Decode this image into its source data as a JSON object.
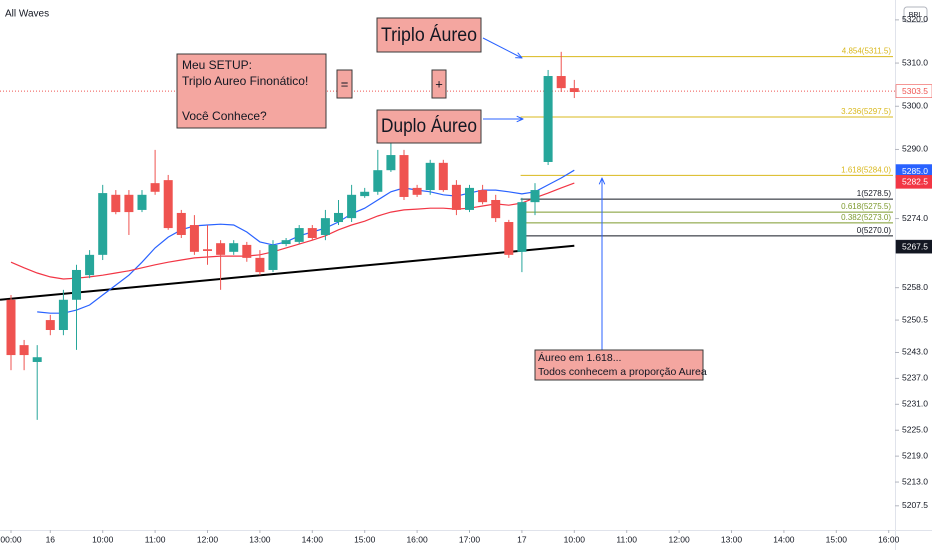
{
  "chart_data": {
    "type": "candlestick",
    "title": "All Waves",
    "currency": "BRL",
    "xlim": [
      -0.84,
      67.48
    ],
    "xticks": [
      {
        "value": 0,
        "label": "00:00"
      },
      {
        "value": 3,
        "label": "16"
      },
      {
        "value": 7,
        "label": "10:00"
      },
      {
        "value": 11,
        "label": "11:00"
      },
      {
        "value": 15,
        "label": "12:00"
      },
      {
        "value": 19,
        "label": "13:00"
      },
      {
        "value": 23,
        "label": "14:00"
      },
      {
        "value": 27,
        "label": "15:00"
      },
      {
        "value": 31,
        "label": "16:00"
      },
      {
        "value": 35,
        "label": "17:00"
      },
      {
        "value": 39,
        "label": "17"
      },
      {
        "value": 43,
        "label": "10:00"
      },
      {
        "value": 47,
        "label": "11:00"
      },
      {
        "value": 51,
        "label": "12:00"
      },
      {
        "value": 55,
        "label": "13:00"
      },
      {
        "value": 59,
        "label": "14:00"
      },
      {
        "value": 63,
        "label": "15:00"
      },
      {
        "value": 67,
        "label": "16:00"
      }
    ],
    "ylim": [
      5201.9,
      5324.6
    ],
    "yticks": [
      {
        "value": 5320,
        "label": "5320.0"
      },
      {
        "value": 5310,
        "label": "5310.0"
      },
      {
        "value": 5300,
        "label": "5300.0"
      },
      {
        "value": 5290,
        "label": "5290.0"
      },
      {
        "value": 5274,
        "label": "5274.0"
      },
      {
        "value": 5258,
        "label": "5258.0"
      },
      5250.5,
      {
        "value": 5243,
        "label": "5243.0"
      },
      {
        "value": 5237,
        "label": "5237.0"
      },
      {
        "value": 5231,
        "label": "5231.0"
      },
      {
        "value": 5225,
        "label": "5225.0"
      },
      {
        "value": 5219,
        "label": "5219.0"
      },
      {
        "value": 5213,
        "label": "5213.0"
      },
      5207.5
    ],
    "grid": false,
    "up_color": "#26a69a",
    "down_color": "#ef5350",
    "candles": [
      [
        5255.2,
        5256.3,
        5238.9,
        5242.4
      ],
      [
        5244.7,
        5245.9,
        5238.9,
        5242.4
      ],
      [
        5240.8,
        5244.7,
        5227.4,
        5241.9
      ],
      [
        5250.5,
        5251.7,
        5247.0,
        5248.2
      ],
      [
        5248.2,
        5257.5,
        5247.0,
        5255.2
      ],
      [
        5255.2,
        5263.3,
        5243.6,
        5262.1
      ],
      [
        5260.9,
        5266.7,
        5260.2,
        5265.6
      ],
      [
        5265.6,
        5281.8,
        5264.4,
        5279.9
      ],
      [
        5279.5,
        5280.6,
        5275.0,
        5275.5
      ],
      [
        5279.5,
        5280.6,
        5270.2,
        5275.5
      ],
      [
        5276.0,
        5280.6,
        5275.5,
        5279.5
      ],
      [
        5282.2,
        5289.9,
        5279.5,
        5280.2
      ],
      [
        5282.9,
        5284.1,
        5271.4,
        5271.8
      ],
      [
        5275.3,
        5276.0,
        5269.5,
        5270.2
      ],
      [
        5272.5,
        5274.8,
        5265.6,
        5266.3
      ],
      [
        5266.9,
        5272.5,
        5263.3,
        5266.5
      ],
      [
        5268.3,
        5269.0,
        5257.5,
        5265.6
      ],
      [
        5266.3,
        5269.0,
        5265.6,
        5268.3
      ],
      [
        5267.9,
        5268.6,
        5264.0,
        5264.9
      ],
      [
        5264.9,
        5266.7,
        5260.9,
        5261.6
      ],
      [
        5262.1,
        5269.0,
        5261.6,
        5267.9
      ],
      [
        5268.1,
        5269.5,
        5267.6,
        5269.0
      ],
      [
        5268.6,
        5272.5,
        5268.1,
        5271.8
      ],
      [
        5271.8,
        5272.5,
        5269.0,
        5269.5
      ],
      [
        5270.2,
        5276.0,
        5269.0,
        5274.1
      ],
      [
        5273.2,
        5278.3,
        5272.5,
        5275.3
      ],
      [
        5274.1,
        5281.8,
        5273.2,
        5279.5
      ],
      [
        5279.2,
        5281.1,
        5278.8,
        5280.2
      ],
      [
        5280.2,
        5289.9,
        5279.5,
        5285.2
      ],
      [
        5285.2,
        5292.2,
        5284.8,
        5288.7
      ],
      [
        5288.7,
        5289.9,
        5278.3,
        5279.0
      ],
      [
        5281.1,
        5281.8,
        5279.0,
        5279.5
      ],
      [
        5280.6,
        5287.6,
        5279.5,
        5286.9
      ],
      [
        5286.9,
        5287.6,
        5280.2,
        5280.6
      ],
      [
        5281.8,
        5282.9,
        5274.8,
        5276.0
      ],
      [
        5276.0,
        5281.8,
        5275.5,
        5281.1
      ],
      [
        5280.6,
        5281.8,
        5277.3,
        5277.8
      ],
      [
        5278.3,
        5279.5,
        5273.2,
        5274.1
      ],
      [
        5273.2,
        5273.7,
        5264.9,
        5265.6
      ],
      [
        5266.3,
        5278.8,
        5261.6,
        5277.8
      ],
      [
        5277.8,
        5282.2,
        5274.8,
        5280.6
      ],
      [
        5287.1,
        5308.4,
        5286.4,
        5307.0
      ],
      [
        5307.0,
        5312.6,
        5303.3,
        5304.2
      ],
      [
        5304.2,
        5306.1,
        5301.9,
        5303.3
      ]
    ],
    "lines": [
      {
        "color": "#2962ff",
        "values": [
          null,
          null,
          5252.4,
          5252.1,
          5252.1,
          5252.8,
          5254.0,
          5256.3,
          5258.6,
          5260.9,
          5263.9,
          5267.2,
          5269.7,
          5271.4,
          5272.3,
          5272.5,
          5272.7,
          5272.5,
          5270.9,
          5268.6,
          5267.9,
          5268.6,
          5270.0,
          5270.9,
          5271.8,
          5273.2,
          5275.1,
          5276.4,
          5278.3,
          5280.2,
          5281.1,
          5280.6,
          5280.2,
          5279.5,
          5279.2,
          5279.9,
          5280.6,
          5280.6,
          5280.2,
          5279.7,
          5280.2,
          5281.8,
          5283.4,
          5285.2
        ]
      },
      {
        "color": "#f23645",
        "values": [
          5263.9,
          5262.6,
          5261.4,
          5260.5,
          5260.0,
          5260.2,
          5260.5,
          5260.9,
          5261.4,
          5261.9,
          5262.6,
          5263.3,
          5263.9,
          5264.4,
          5264.9,
          5265.1,
          5265.3,
          5265.3,
          5265.3,
          5265.6,
          5266.3,
          5267.2,
          5268.1,
          5269.0,
          5270.0,
          5271.4,
          5272.5,
          5273.4,
          5274.6,
          5275.5,
          5276.0,
          5276.2,
          5276.4,
          5276.4,
          5276.2,
          5276.4,
          5276.9,
          5277.4,
          5277.1,
          5277.6,
          5278.8,
          5279.9,
          5281.1,
          5282.2
        ]
      }
    ],
    "trendline": {
      "color": "#000000",
      "x": [
        -0.84,
        43
      ],
      "values": [
        5255.2,
        5267.7
      ]
    },
    "fib_levels": [
      {
        "label": "4.854(5311.5)",
        "value": 5311.5,
        "color": "#d9b81c"
      },
      {
        "label": "3.236(5297.5)",
        "value": 5297.5,
        "color": "#d9b81c"
      },
      {
        "label": "1.618(5284.0)",
        "value": 5284.0,
        "color": "#d9b81c"
      },
      {
        "label": "1(5278.5)",
        "value": 5278.5,
        "color": "#131722"
      },
      {
        "label": "0.618(5275.5)",
        "value": 5275.5,
        "color": "#7d9a2e"
      },
      {
        "label": "0.382(5273.0)",
        "value": 5273.0,
        "color": "#7d9a2e"
      },
      {
        "label": "0(5270.0)",
        "value": 5270.0,
        "color": "#131722"
      }
    ],
    "price_labels": [
      {
        "value": 5303.5,
        "fill": "#ffffff",
        "text_color": "#ef5350"
      },
      {
        "value": 5285,
        "label": "5285.0",
        "fill": "#2962ff",
        "text_color": "#ffffff"
      },
      {
        "value": 5282.5,
        "fill": "#f23645",
        "text_color": "#ffffff"
      },
      {
        "value": 5267.5,
        "fill": "#131722",
        "text_color": "#ffffff"
      }
    ],
    "annotations": {
      "setup": [
        "Meu SETUP:",
        "Triplo Aureo Finonático!",
        "Você Conhece?"
      ],
      "equals": "=",
      "plus": "+",
      "triple": "Triplo Áureo",
      "double": "Duplo Áureo",
      "note": [
        "Áureo em 1.618...",
        "Todos conhecem a proporção Aurea"
      ]
    }
  }
}
